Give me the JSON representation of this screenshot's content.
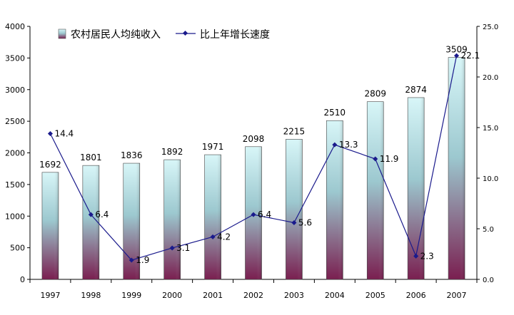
{
  "chart_data": {
    "type": "bar",
    "categories": [
      "1997",
      "1998",
      "1999",
      "2000",
      "2001",
      "2002",
      "2003",
      "2004",
      "2005",
      "2006",
      "2007"
    ],
    "series": [
      {
        "name": "农村居民人均纯收入",
        "type": "bar",
        "axis": "left",
        "values": [
          1692,
          1801,
          1836,
          1892,
          1971,
          2098,
          2215,
          2510,
          2809,
          2874,
          3509
        ],
        "labels": [
          "1692",
          "1801",
          "1836",
          "1892",
          "1971",
          "2098",
          "2215",
          "2510",
          "2809",
          "2874",
          "3509"
        ]
      },
      {
        "name": "比上年增长速度",
        "type": "line",
        "axis": "right",
        "values": [
          14.4,
          6.4,
          1.9,
          3.1,
          4.2,
          6.4,
          5.6,
          13.3,
          11.9,
          2.3,
          22.1
        ],
        "labels": [
          "14.4",
          "6.4",
          "1.9",
          "3.1",
          "4.2",
          "6.4",
          "5.6",
          "13.3",
          "11.9",
          "2.3",
          "22.1"
        ]
      }
    ],
    "y_left": {
      "min": 0,
      "max": 4000,
      "ticks": [
        "0",
        "500",
        "1000",
        "1500",
        "2000",
        "2500",
        "3000",
        "3500",
        "4000"
      ]
    },
    "y_right": {
      "min": 0,
      "max": 25,
      "ticks": [
        "0.0",
        "5.0",
        "10.0",
        "15.0",
        "20.0",
        "25.0"
      ]
    },
    "legend": "top-left",
    "grid": false,
    "colors": {
      "bar_top": "#d8f6f8",
      "bar_mid": "#9cc8cf",
      "bar_bottom": "#7a1f50",
      "line": "#1a1a8c",
      "axis": "#000000"
    }
  }
}
